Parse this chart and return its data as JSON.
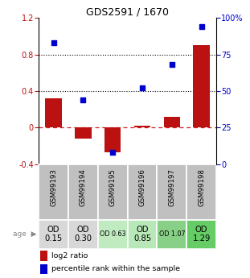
{
  "title": "GDS2591 / 1670",
  "samples": [
    "GSM99193",
    "GSM99194",
    "GSM99195",
    "GSM99196",
    "GSM99197",
    "GSM99198"
  ],
  "log2_ratio": [
    0.32,
    -0.12,
    -0.27,
    0.02,
    0.12,
    0.9
  ],
  "percentile_rank": [
    83,
    44,
    8,
    52,
    68,
    94
  ],
  "ylim_left": [
    -0.4,
    1.2
  ],
  "ylim_right": [
    0,
    100
  ],
  "bar_color": "#bb1111",
  "dot_color": "#0000cc",
  "dot_size": 18,
  "age_labels": [
    "OD\n0.15",
    "OD\n0.30",
    "OD 0.63",
    "OD\n0.85",
    "OD 1.07",
    "OD\n1.29"
  ],
  "age_bg_colors": [
    "#d8d8d8",
    "#d8d8d8",
    "#c0eac0",
    "#b8e8b8",
    "#88d088",
    "#66cc66"
  ],
  "age_fontsize_small": [
    false,
    false,
    true,
    false,
    true,
    false
  ],
  "gsm_bg_color": "#c0c0c0",
  "legend_red": "log2 ratio",
  "legend_blue": "percentile rank within the sample",
  "bar_width": 0.55
}
